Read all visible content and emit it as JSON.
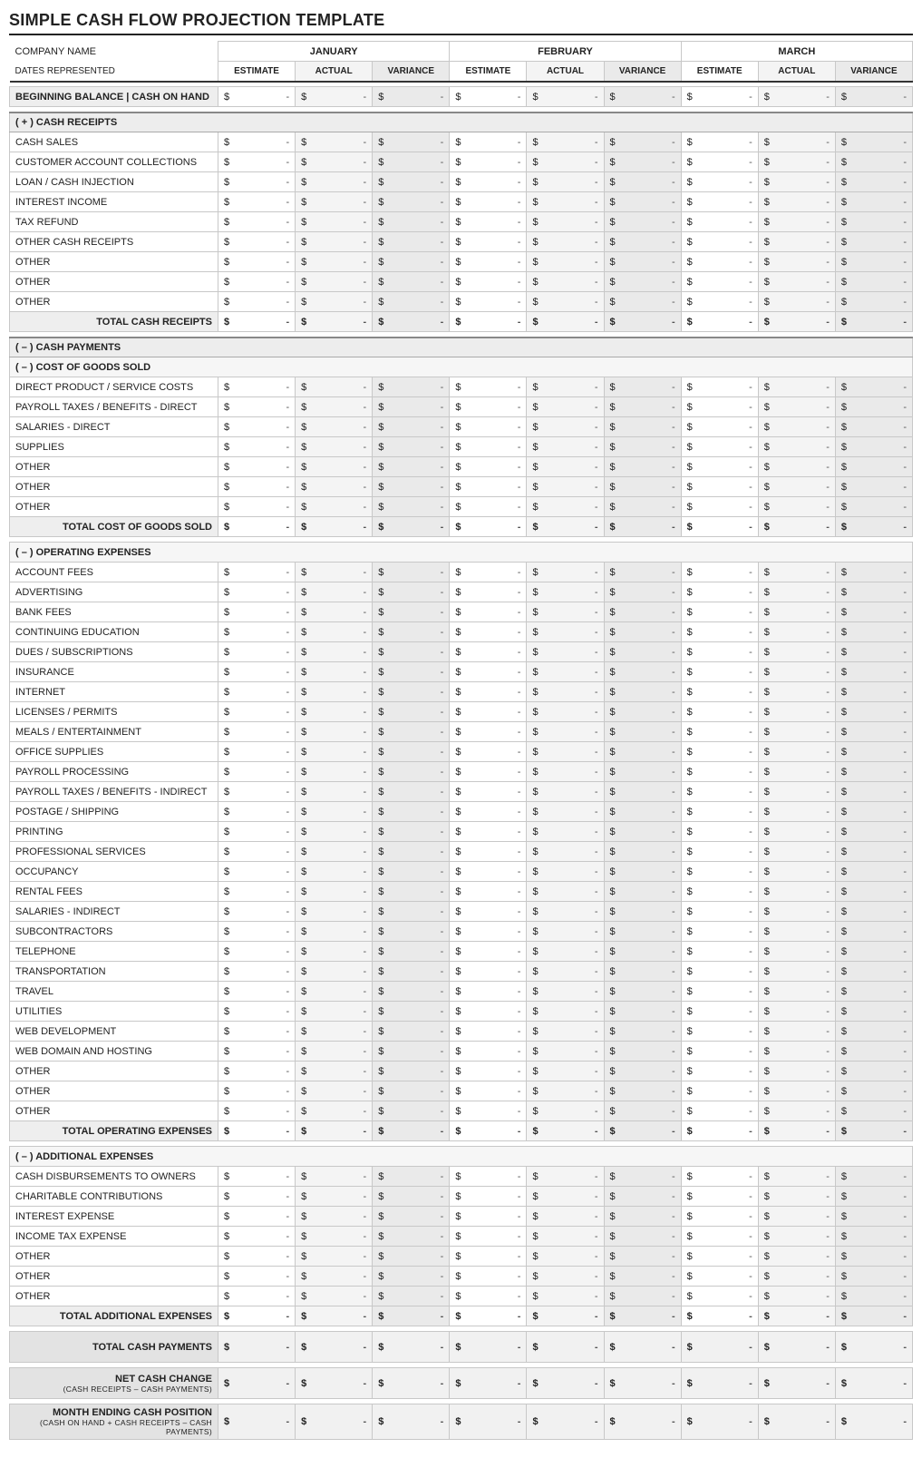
{
  "title": "SIMPLE CASH FLOW PROJECTION TEMPLATE",
  "header": {
    "company_label": "COMPANY NAME",
    "dates_label": "DATES REPRESENTED",
    "months": [
      "JANUARY",
      "FEBRUARY",
      "MARCH"
    ],
    "subcols": [
      "ESTIMATE",
      "ACTUAL",
      "VARIANCE"
    ]
  },
  "rows": {
    "beginning_balance": "BEGINNING BALANCE  |  CASH ON HAND",
    "cash_receipts_header": "( + )  CASH RECEIPTS",
    "cash_receipts": [
      "CASH SALES",
      "CUSTOMER ACCOUNT COLLECTIONS",
      "LOAN / CASH INJECTION",
      "INTEREST INCOME",
      "TAX REFUND",
      "OTHER CASH RECEIPTS",
      "OTHER",
      "OTHER",
      "OTHER"
    ],
    "total_cash_receipts": "TOTAL CASH RECEIPTS",
    "cash_payments_header": "( – )  CASH PAYMENTS",
    "cogs_header": "( – )  COST OF GOODS SOLD",
    "cogs": [
      "DIRECT PRODUCT / SERVICE COSTS",
      "PAYROLL TAXES / BENEFITS - DIRECT",
      "SALARIES - DIRECT",
      "SUPPLIES",
      "OTHER",
      "OTHER",
      "OTHER"
    ],
    "total_cogs": "TOTAL COST OF GOODS SOLD",
    "opex_header": "( – )  OPERATING EXPENSES",
    "opex": [
      "ACCOUNT FEES",
      "ADVERTISING",
      "BANK FEES",
      "CONTINUING EDUCATION",
      "DUES / SUBSCRIPTIONS",
      "INSURANCE",
      "INTERNET",
      "LICENSES / PERMITS",
      "MEALS / ENTERTAINMENT",
      "OFFICE SUPPLIES",
      "PAYROLL PROCESSING",
      "PAYROLL TAXES / BENEFITS - INDIRECT",
      "POSTAGE / SHIPPING",
      "PRINTING",
      "PROFESSIONAL SERVICES",
      "OCCUPANCY",
      "RENTAL FEES",
      "SALARIES - INDIRECT",
      "SUBCONTRACTORS",
      "TELEPHONE",
      "TRANSPORTATION",
      "TRAVEL",
      "UTILITIES",
      "WEB DEVELOPMENT",
      "WEB DOMAIN AND HOSTING",
      "OTHER",
      "OTHER",
      "OTHER"
    ],
    "total_opex": "TOTAL OPERATING EXPENSES",
    "addl_header": "( – )  ADDITIONAL EXPENSES",
    "addl": [
      "CASH DISBURSEMENTS TO OWNERS",
      "CHARITABLE CONTRIBUTIONS",
      "INTEREST EXPENSE",
      "INCOME TAX EXPENSE",
      "OTHER",
      "OTHER",
      "OTHER"
    ],
    "total_addl": "TOTAL ADDITIONAL EXPENSES",
    "total_cash_payments": "TOTAL CASH PAYMENTS",
    "net_cash_change": "NET CASH CHANGE",
    "net_cash_change_sub": "(CASH RECEIPTS – CASH PAYMENTS)",
    "month_ending": "MONTH ENDING CASH POSITION",
    "month_ending_sub": "(CASH ON HAND + CASH RECEIPTS – CASH PAYMENTS)"
  },
  "style": {
    "currency": "$",
    "dash": "-",
    "shade_levels": [
      "#ffffff",
      "#f4f4f4",
      "#eaeaea"
    ],
    "col_shades_per_month": [
      0,
      1,
      2
    ],
    "border_color": "#c8c8c8",
    "heavy_border": "#333333",
    "section_bg": "#ededed",
    "total_label_bg": "#eeeeee",
    "grand_label_bg": "#e3e3e3",
    "fontsize_body": 11,
    "fontsize_title": 18,
    "fontsize_subhead": 10
  }
}
